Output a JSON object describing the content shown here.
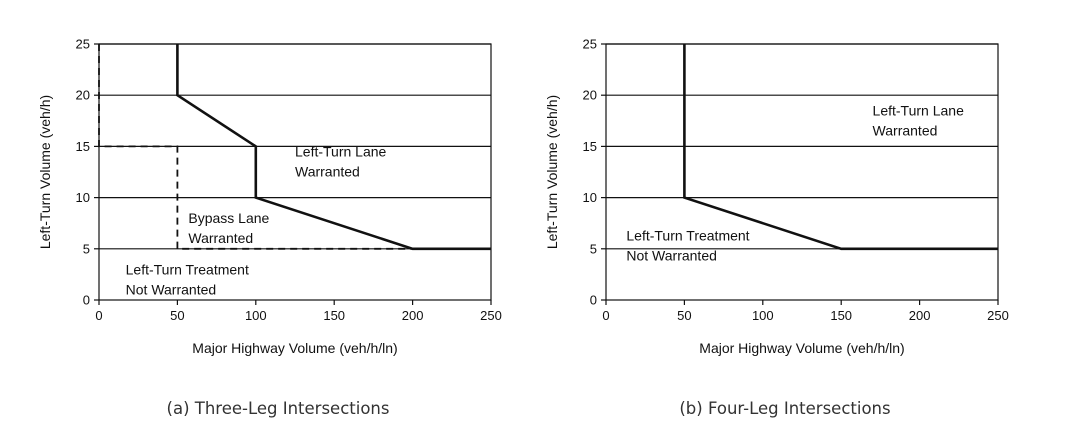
{
  "chart_data": [
    {
      "type": "line",
      "caption": "(a) Three-Leg Intersections",
      "xlabel": "Major Highway Volume (veh/h/ln)",
      "ylabel": "Left-Turn Volume (veh/h)",
      "xlim": [
        0,
        250
      ],
      "ylim": [
        0,
        25
      ],
      "xticks": [
        0,
        50,
        100,
        150,
        200,
        250
      ],
      "yticks": [
        0,
        5,
        10,
        15,
        20,
        25
      ],
      "grid": "horizontal",
      "series": [
        {
          "style": "solid",
          "x": [
            50,
            50,
            100,
            100,
            200,
            250
          ],
          "y": [
            25,
            20,
            15,
            10,
            5,
            5
          ]
        },
        {
          "style": "dashed",
          "x": [
            0,
            0,
            50,
            50,
            200
          ],
          "y": [
            25,
            15,
            15,
            5,
            5
          ]
        }
      ],
      "annotations": [
        {
          "lines": [
            "Left-Turn Lane",
            "Warranted"
          ],
          "x": 125,
          "y": 14
        },
        {
          "lines": [
            "Bypass Lane",
            "Warranted"
          ],
          "x": 57,
          "y": 7.5
        },
        {
          "lines": [
            "Left-Turn Treatment",
            "Not Warranted"
          ],
          "x": 17,
          "y": 2.5
        }
      ]
    },
    {
      "type": "line",
      "caption": "(b) Four-Leg Intersections",
      "xlabel": "Major Highway Volume (veh/h/ln)",
      "ylabel": "Left-Turn Volume (veh/h)",
      "xlim": [
        0,
        250
      ],
      "ylim": [
        0,
        25
      ],
      "xticks": [
        0,
        50,
        100,
        150,
        200,
        250
      ],
      "yticks": [
        0,
        5,
        10,
        15,
        20,
        25
      ],
      "grid": "horizontal",
      "series": [
        {
          "style": "solid",
          "x": [
            50,
            50,
            150,
            250
          ],
          "y": [
            25,
            10,
            5,
            5
          ]
        }
      ],
      "annotations": [
        {
          "lines": [
            "Left-Turn Lane",
            "Warranted"
          ],
          "x": 170,
          "y": 18
        },
        {
          "lines": [
            "Left-Turn Treatment",
            "Not Warranted"
          ],
          "x": 13,
          "y": 5.8
        }
      ]
    }
  ]
}
